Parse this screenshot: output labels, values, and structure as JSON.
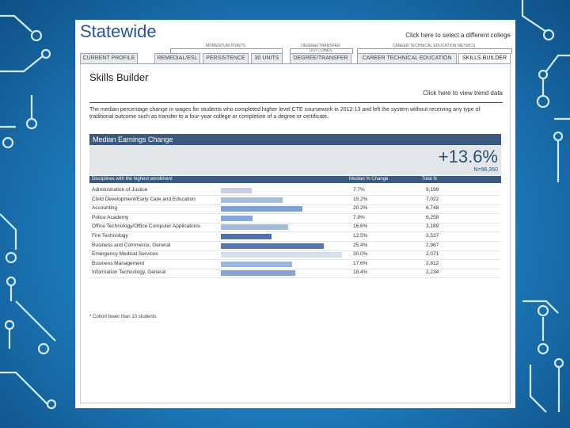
{
  "header": {
    "title": "Statewide",
    "select_link": "Click here to select a different college"
  },
  "tab_groups": [
    {
      "label": "MOMENTUM POINTS"
    },
    {
      "label": "DEGREE/TRANSFER OUTCOMES"
    },
    {
      "label": "CAREER TECHNICAL EDUCATION METRICS"
    }
  ],
  "tabs": [
    {
      "label": "CURRENT PROFILE"
    },
    {
      "label": "REMEDIAL/ESL"
    },
    {
      "label": "PERSISTENCE"
    },
    {
      "label": "30 UNITS"
    },
    {
      "label": "DEGREE/TRANSFER"
    },
    {
      "label": "CAREER TECHNICAL EDUCATION"
    },
    {
      "label": "SKILLS BUILDER"
    }
  ],
  "skills": {
    "title": "Skills Builder",
    "trend_link": "Click here to view trend data",
    "description": "The median percentage change in wages for students who completed higher level CTE coursework in 2012-13 and left the system without receiving any type of traditional outcome such as transfer to a four-year college or completion of a degree or certificate.",
    "earnings_header": "Median Earnings Change",
    "earnings_value": "+13.6%",
    "earnings_n": "N=96,350",
    "table_headers": {
      "discipline": "Disciplines with the highest enrollment",
      "median": "Median % Change",
      "total": "Total N"
    },
    "rows": [
      {
        "name": "Administration of Justice",
        "pct": "7.7%",
        "n": "9,199",
        "value": 7.7,
        "color": "#c5d1e2"
      },
      {
        "name": "Child Development/Early Care and Education",
        "pct": "15.2%",
        "n": "7,022",
        "value": 15.2,
        "color": "#a7bfdf"
      },
      {
        "name": "Accounting",
        "pct": "20.2%",
        "n": "6,748",
        "value": 20.2,
        "color": "#7e9fd0"
      },
      {
        "name": "Police Academy",
        "pct": "7.8%",
        "n": "6,258",
        "value": 7.8,
        "color": "#86a7d8"
      },
      {
        "name": "Office Technology/Office Computer Applications",
        "pct": "16.6%",
        "n": "3,189",
        "value": 16.6,
        "color": "#a2bce0"
      },
      {
        "name": "Fire Technology",
        "pct": "12.5%",
        "n": "3,537",
        "value": 12.5,
        "color": "#4d72b0"
      },
      {
        "name": "Business and Commerce, General",
        "pct": "25.4%",
        "n": "2,967",
        "value": 25.4,
        "color": "#5478b2"
      },
      {
        "name": "Emergency Medical Services",
        "pct": "30.0%",
        "n": "2,071",
        "value": 30.0,
        "color": "#d7dfea"
      },
      {
        "name": "Business Management",
        "pct": "17.6%",
        "n": "2,812",
        "value": 17.6,
        "color": "#9db6dc"
      },
      {
        "name": "Information Technology, General",
        "pct": "18.4%",
        "n": "2,234",
        "value": 18.4,
        "color": "#86a3d1"
      }
    ],
    "footnote": "* Cohort fewer than 10 students"
  }
}
